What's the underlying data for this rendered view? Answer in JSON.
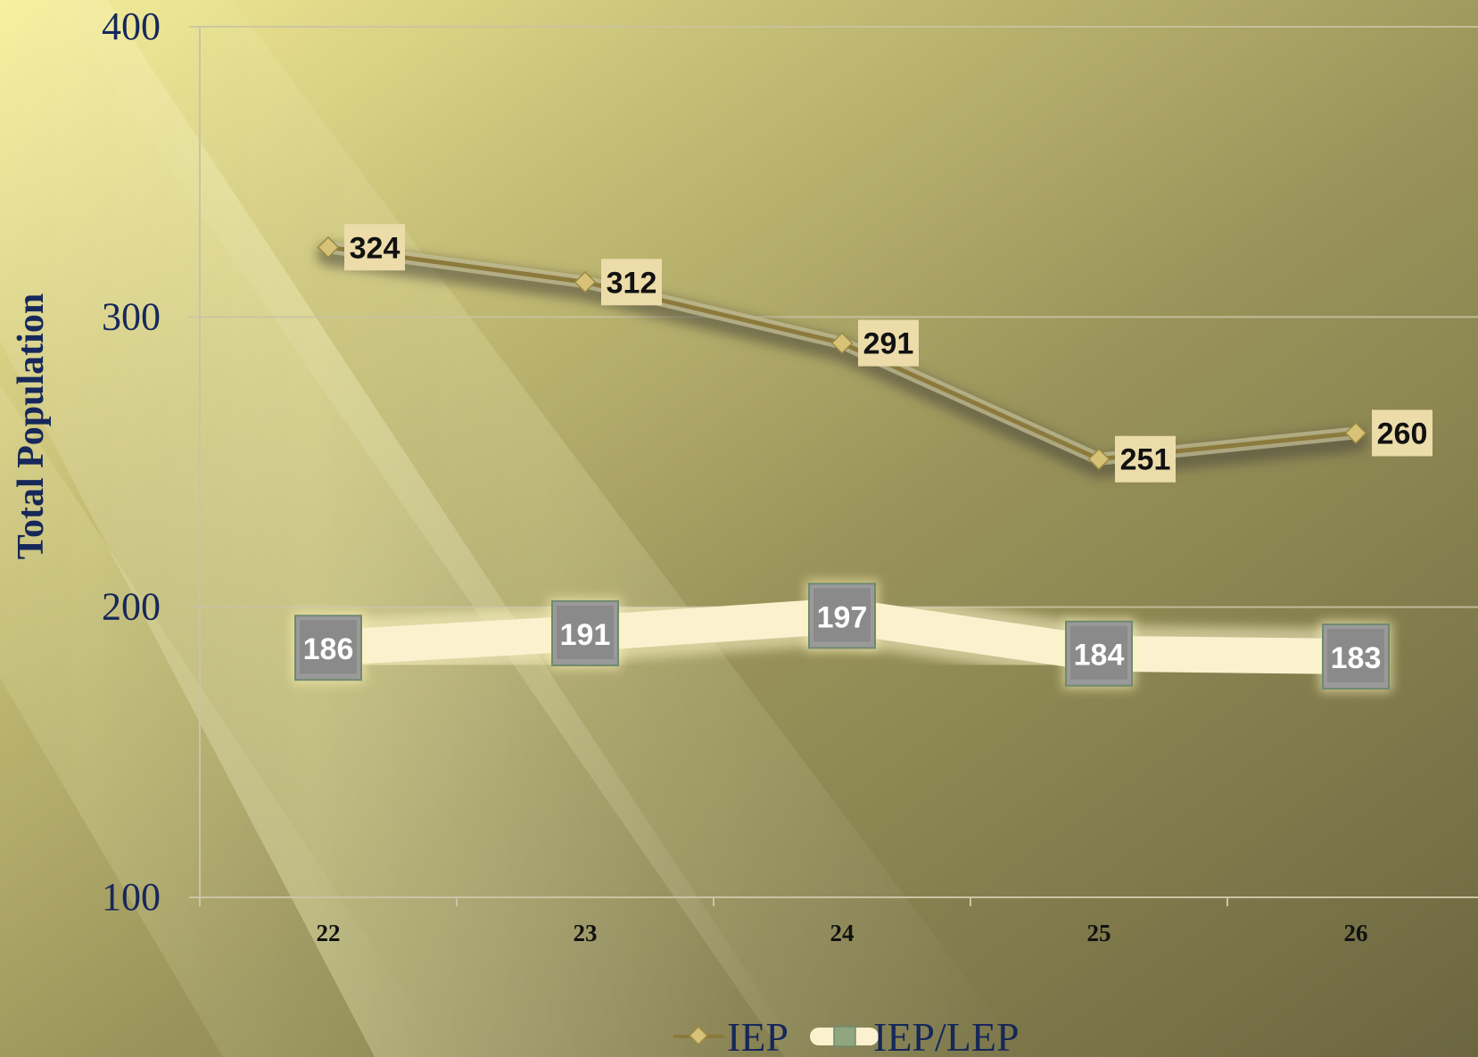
{
  "chart_data": {
    "type": "line",
    "categories": [
      "22",
      "23",
      "24",
      "25",
      "26"
    ],
    "series": [
      {
        "name": "IEP",
        "values": [
          324,
          312,
          291,
          251,
          260
        ]
      },
      {
        "name": "IEP/LEP",
        "values": [
          186,
          191,
          197,
          184,
          183
        ]
      }
    ],
    "title": "",
    "xlabel": "",
    "ylabel": "Total Population",
    "ylim": [
      100,
      400
    ],
    "yticks": [
      "100",
      "200",
      "300",
      "400"
    ],
    "grid": true,
    "legend": "bottom",
    "colors": {
      "iep_line": "#8c7a3c",
      "iep_marker": "#d8c277",
      "iep_label_bg": "#ecdcaa",
      "lep_line": "#fbf1cf",
      "lep_marker": "#8a8a8a",
      "lep_marker_border": "#6f8a6f",
      "legend_lep_marker": "#8fa67e",
      "axis_text": "#16285a",
      "grid": "#c9c4a4"
    }
  }
}
